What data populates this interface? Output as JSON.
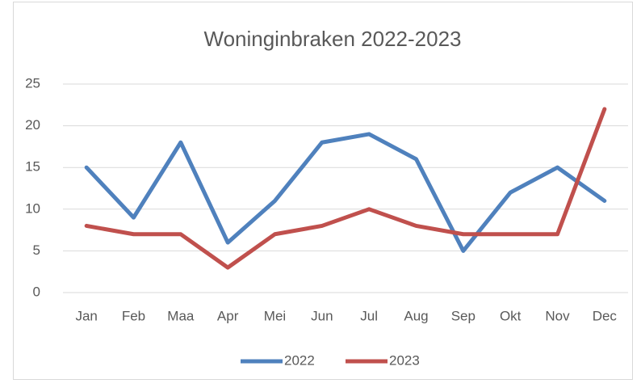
{
  "chart_data": {
    "type": "line",
    "title": "Woninginbraken 2022-2023",
    "categories": [
      "Jan",
      "Feb",
      "Maa",
      "Apr",
      "Mei",
      "Jun",
      "Jul",
      "Aug",
      "Sep",
      "Okt",
      "Nov",
      "Dec"
    ],
    "series": [
      {
        "name": "2022",
        "color": "#4f81bd",
        "values": [
          15,
          9,
          18,
          6,
          11,
          18,
          19,
          16,
          5,
          12,
          15,
          11
        ]
      },
      {
        "name": "2023",
        "color": "#c0504d",
        "values": [
          8,
          7,
          7,
          3,
          7,
          8,
          10,
          8,
          7,
          7,
          7,
          22
        ]
      }
    ],
    "ylim": [
      0,
      25
    ],
    "yticks": [
      0,
      5,
      10,
      15,
      20,
      25
    ],
    "grid": true,
    "legend": "bottom"
  }
}
